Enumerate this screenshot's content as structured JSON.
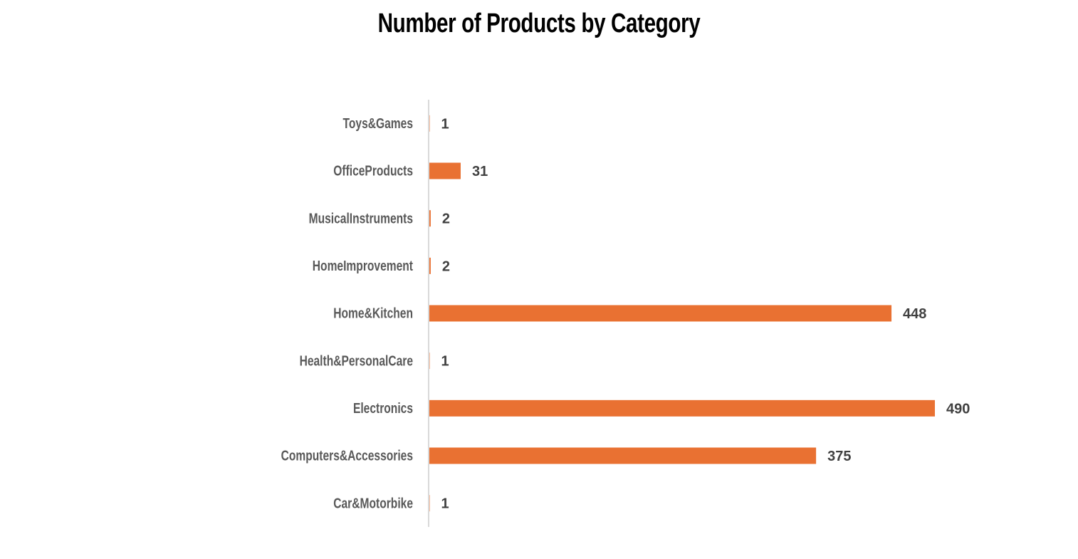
{
  "chart_data": {
    "type": "bar",
    "orientation": "horizontal",
    "title": "Number of Products by Category",
    "categories": [
      "Toys&Games",
      "OfficeProducts",
      "MusicalInstruments",
      "HomeImprovement",
      "Home&Kitchen",
      "Health&PersonalCare",
      "Electronics",
      "Computers&Accessories",
      "Car&Motorbike"
    ],
    "values": [
      1,
      31,
      2,
      2,
      448,
      1,
      490,
      375,
      1
    ],
    "data_labels": [
      "1",
      "31",
      "2",
      "2",
      "448",
      "1",
      "490",
      "375",
      "1"
    ],
    "xlim": [
      0,
      490
    ],
    "grid": false,
    "legend": "none",
    "bar_color": "#E97132",
    "axis_color": "#D9D9D9"
  }
}
